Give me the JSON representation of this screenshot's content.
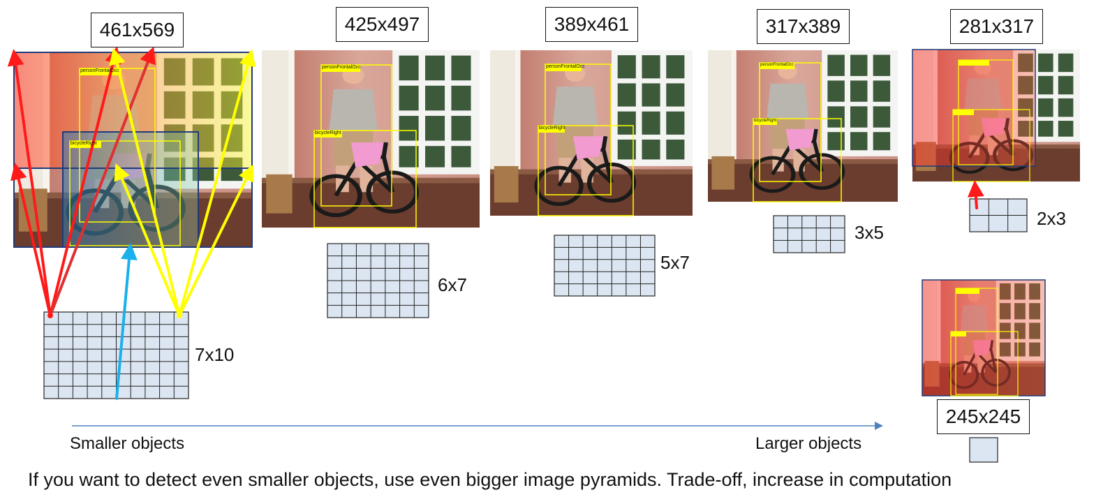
{
  "scales": [
    {
      "size_label": "461x569",
      "grid_label": "7x10",
      "grid": {
        "rows": 7,
        "cols": 10
      }
    },
    {
      "size_label": "425x497",
      "grid_label": "6x7",
      "grid": {
        "rows": 6,
        "cols": 7
      }
    },
    {
      "size_label": "389x461",
      "grid_label": "5x7",
      "grid": {
        "rows": 5,
        "cols": 7
      }
    },
    {
      "size_label": "317x389",
      "grid_label": "3x5",
      "grid": {
        "rows": 3,
        "cols": 5
      }
    },
    {
      "size_label": "281x317",
      "grid_label": "2x3",
      "grid": {
        "rows": 2,
        "cols": 3
      }
    },
    {
      "size_label": "245x245",
      "grid": {
        "rows": 1,
        "cols": 1
      }
    }
  ],
  "box_labels": {
    "person": "personFrontalOcc",
    "bicycle": "bicycleRight"
  },
  "axis": {
    "left_label": "Smaller objects",
    "right_label": "Larger objects"
  },
  "footer": "If you want to detect even smaller objects, use even bigger image pyramids. Trade-off, increase in computation",
  "colors": {
    "grid_fill": "#dce6f2",
    "arrow_red": "#ff1a1a",
    "arrow_yellow": "#ffff00",
    "arrow_blue": "#1ab0ea",
    "axis_line": "#4f81bd",
    "box_yellow": "#ffff00"
  }
}
